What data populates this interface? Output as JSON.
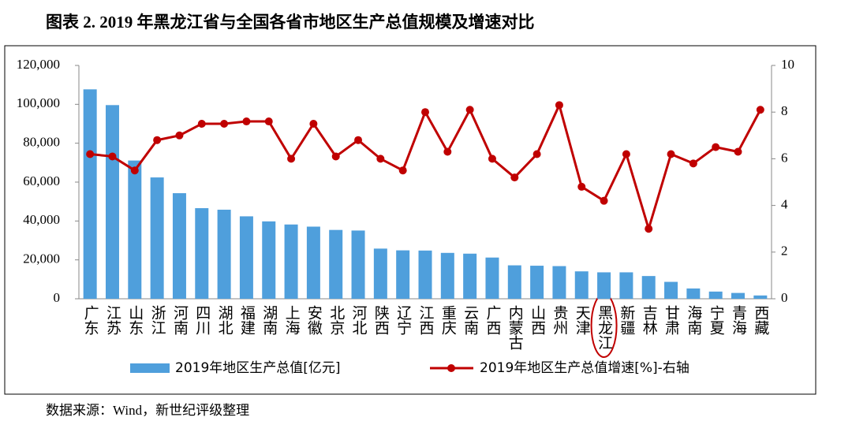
{
  "chart_data": {
    "type": "bar-line",
    "title": "图表 2. 2019 年黑龙江省与全国各省市地区生产总值规模及增速对比",
    "source": "数据来源：Wind，新世纪评级整理",
    "categories": [
      "广东",
      "江苏",
      "山东",
      "浙江",
      "河南",
      "四川",
      "湖北",
      "福建",
      "湖南",
      "上海",
      "安徽",
      "北京",
      "河北",
      "陕西",
      "辽宁",
      "江西",
      "重庆",
      "云南",
      "广西",
      "内蒙古",
      "山西",
      "贵州",
      "天津",
      "黑龙江",
      "新疆",
      "吉林",
      "甘肃",
      "海南",
      "宁夏",
      "青海",
      "西藏"
    ],
    "series": [
      {
        "name": "2019年地区生产总值[亿元]",
        "type": "bar",
        "color": "#4f9fdc",
        "values": [
          107700,
          99600,
          71100,
          62400,
          54300,
          46600,
          45800,
          42400,
          39800,
          38200,
          37100,
          35400,
          35100,
          25800,
          24900,
          24800,
          23600,
          23200,
          21200,
          17200,
          17000,
          16800,
          14100,
          13600,
          13600,
          11700,
          8700,
          5300,
          3700,
          3000,
          1700
        ]
      },
      {
        "name": "2019年地区生产总值增速[%]-右轴",
        "type": "line",
        "axis": "y2",
        "color": "#c00000",
        "values": [
          6.2,
          6.1,
          5.5,
          6.8,
          7.0,
          7.5,
          7.5,
          7.6,
          7.6,
          6.0,
          7.5,
          6.1,
          6.8,
          6.0,
          5.5,
          8.0,
          6.3,
          8.1,
          6.0,
          5.2,
          6.2,
          8.3,
          4.8,
          4.2,
          6.2,
          3.0,
          6.2,
          5.8,
          6.5,
          6.3,
          8.1
        ]
      }
    ],
    "ylim": [
      0,
      120000
    ],
    "yticks": [
      0,
      {
        "value": 20000,
        "label": "20,000"
      },
      {
        "value": 40000,
        "label": "40,000"
      },
      {
        "value": 60000,
        "label": "60,000"
      },
      {
        "value": 80000,
        "label": "80,000"
      },
      {
        "value": 100000,
        "label": "100,000"
      },
      {
        "value": 120000,
        "label": "120,000"
      }
    ],
    "y2lim": [
      0,
      10
    ],
    "y2ticks": [
      0,
      2,
      4,
      6,
      8,
      10
    ],
    "grid": false
  }
}
